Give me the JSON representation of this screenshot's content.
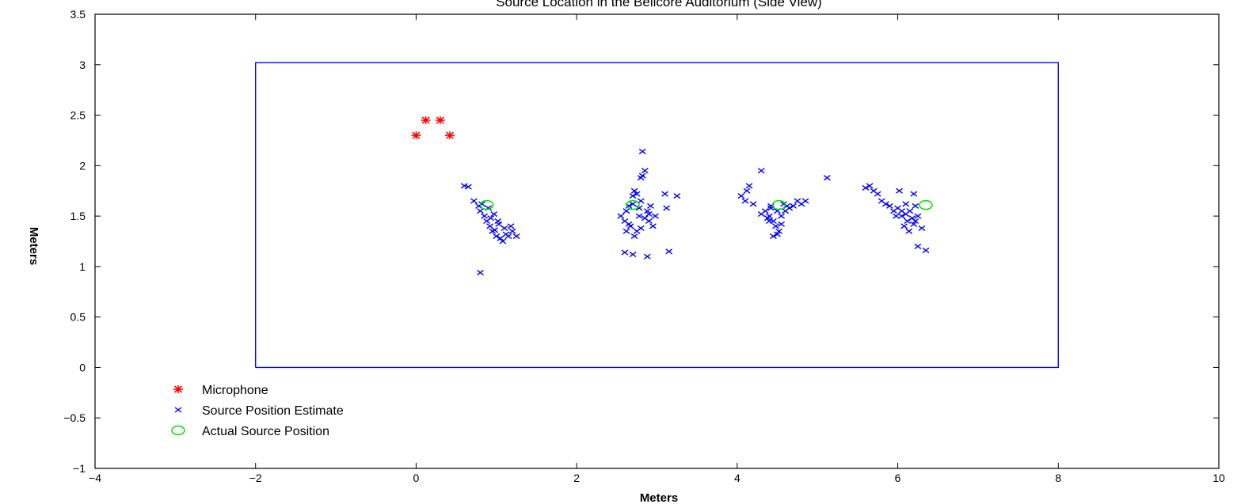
{
  "chart_data": {
    "type": "scatter",
    "title": "Source Location in the Bellcore Auditorium (Side View)",
    "xlabel": "Meters",
    "ylabel": "Meters",
    "xlim": [
      -4,
      10
    ],
    "ylim": [
      -1,
      3.5
    ],
    "xticks": [
      "−4",
      "−2",
      "0",
      "2",
      "4",
      "6",
      "8",
      "10"
    ],
    "yticks": [
      "−1",
      "−0.5",
      "0",
      "0.5",
      "1",
      "1.5",
      "2",
      "2.5",
      "3",
      "3.5"
    ],
    "grid": false,
    "legend_position": "bottom-left",
    "room_outline": {
      "color": "#0000ff",
      "x": [
        -2,
        8,
        8,
        -2,
        -2
      ],
      "y": [
        0,
        0,
        3.02,
        3.02,
        0
      ]
    },
    "series": [
      {
        "name": "Microphone",
        "marker": "asterisk",
        "color": "#ff0000",
        "x": [
          0.0,
          0.12,
          0.3,
          0.42
        ],
        "y": [
          2.3,
          2.45,
          2.45,
          2.3
        ]
      },
      {
        "name": "Source Position Estimate",
        "marker": "x",
        "color": "#0000ff",
        "x": [
          0.6,
          0.65,
          0.72,
          0.78,
          0.8,
          0.82,
          0.85,
          0.88,
          0.9,
          0.92,
          0.95,
          0.97,
          1.0,
          1.02,
          1.05,
          1.08,
          1.1,
          1.12,
          1.15,
          1.18,
          1.2,
          1.25,
          0.93,
          0.98,
          1.03,
          0.8,
          2.55,
          2.6,
          2.62,
          2.65,
          2.67,
          2.7,
          2.72,
          2.75,
          2.78,
          2.8,
          2.82,
          2.85,
          2.88,
          2.9,
          2.92,
          2.95,
          2.98,
          2.7,
          2.72,
          2.75,
          2.78,
          2.8,
          2.85,
          2.82,
          3.1,
          3.25,
          3.12,
          2.6,
          2.7,
          2.88,
          3.15,
          2.65,
          2.8,
          2.62,
          2.9,
          4.05,
          4.1,
          4.12,
          4.15,
          4.2,
          4.3,
          4.35,
          4.4,
          4.42,
          4.45,
          4.48,
          4.5,
          4.52,
          4.55,
          4.58,
          4.6,
          4.65,
          4.7,
          4.75,
          4.8,
          4.85,
          4.45,
          4.5,
          4.38,
          4.42,
          4.3,
          5.12,
          4.55,
          4.62,
          4.4,
          5.6,
          5.65,
          5.7,
          5.75,
          5.8,
          5.85,
          5.9,
          5.95,
          6.0,
          6.05,
          6.1,
          6.12,
          6.15,
          6.18,
          6.2,
          6.22,
          6.25,
          6.3,
          6.02,
          6.08,
          6.14,
          5.98,
          6.2,
          6.25,
          6.35,
          6.1,
          6.22,
          6.05
        ],
        "y": [
          1.8,
          1.79,
          1.65,
          1.6,
          1.55,
          1.62,
          1.5,
          1.45,
          1.58,
          1.4,
          1.35,
          1.52,
          1.3,
          1.45,
          1.28,
          1.25,
          1.38,
          1.32,
          1.3,
          1.4,
          1.35,
          1.3,
          1.48,
          1.36,
          1.42,
          0.94,
          1.5,
          1.45,
          1.55,
          1.6,
          1.4,
          1.7,
          1.75,
          1.35,
          1.5,
          1.88,
          1.9,
          1.95,
          1.55,
          1.45,
          1.6,
          1.4,
          1.5,
          1.62,
          1.3,
          1.72,
          1.58,
          1.38,
          1.48,
          2.14,
          1.72,
          1.7,
          1.58,
          1.14,
          1.12,
          1.1,
          1.15,
          1.42,
          1.65,
          1.35,
          1.52,
          1.7,
          1.65,
          1.75,
          1.8,
          1.62,
          1.95,
          1.55,
          1.5,
          1.6,
          1.45,
          1.4,
          1.55,
          1.35,
          1.5,
          1.62,
          1.55,
          1.58,
          1.6,
          1.65,
          1.62,
          1.65,
          1.3,
          1.32,
          1.48,
          1.58,
          1.52,
          1.88,
          1.42,
          1.6,
          1.45,
          1.78,
          1.8,
          1.75,
          1.72,
          1.65,
          1.62,
          1.6,
          1.55,
          1.58,
          1.5,
          1.52,
          1.45,
          1.55,
          1.48,
          1.42,
          1.6,
          1.5,
          1.38,
          1.75,
          1.4,
          1.35,
          1.5,
          1.72,
          1.2,
          1.16,
          1.62,
          1.45,
          1.55
        ]
      },
      {
        "name": "Actual Source Position",
        "marker": "circle",
        "color": "#00dd00",
        "x": [
          0.88,
          2.7,
          4.52,
          6.35
        ],
        "y": [
          1.61,
          1.61,
          1.61,
          1.61
        ]
      }
    ]
  }
}
